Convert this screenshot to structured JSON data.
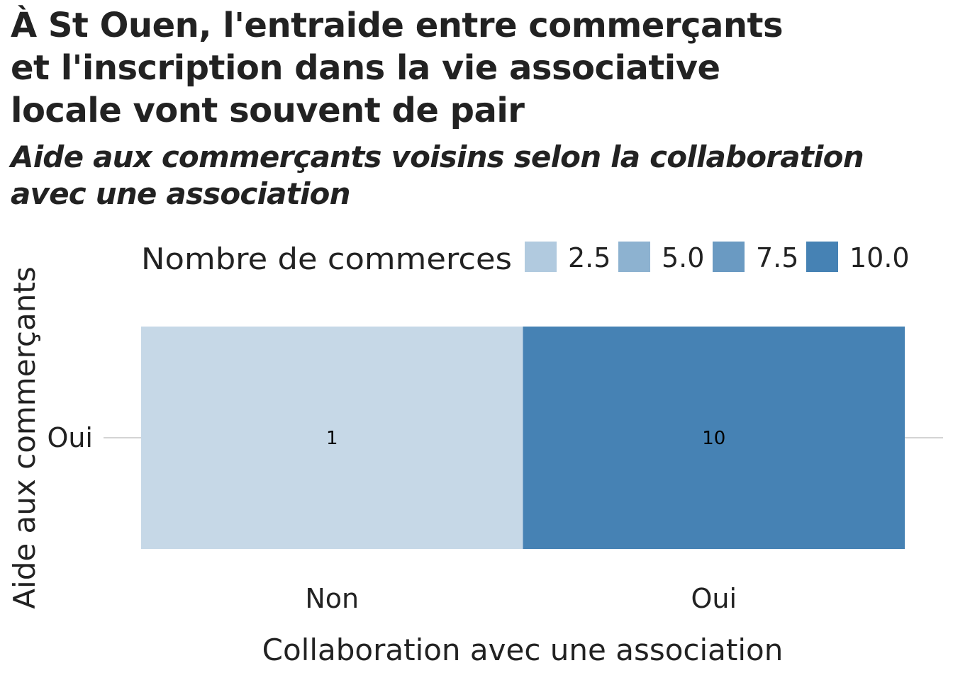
{
  "title": [
    "À St Ouen, l'entraide entre commerçants",
    "et l'inscription dans la vie associative",
    "locale vont souvent de pair"
  ],
  "subtitle": [
    "Aide aux commerçants voisins selon la collaboration",
    "avec une association"
  ],
  "chart_data": {
    "type": "heatmap",
    "xlabel": "Collaboration avec une association",
    "ylabel": "Aide aux commerçants",
    "x_categories": [
      "Non",
      "Oui"
    ],
    "y_categories": [
      "Oui"
    ],
    "cells": [
      {
        "x": "Non",
        "y": "Oui",
        "value": 1,
        "label": "1"
      },
      {
        "x": "Oui",
        "y": "Oui",
        "value": 10,
        "label": "10"
      }
    ],
    "legend": {
      "title": "Nombre de commerces",
      "position": "top",
      "breaks": [
        "2.5",
        "5.0",
        "7.5",
        "10.0"
      ],
      "break_values": [
        2.5,
        5.0,
        7.5,
        10.0
      ]
    },
    "color_scale": {
      "low": "#c6d8e7",
      "high": "#4682b4",
      "domain": [
        1,
        10
      ]
    },
    "grid": true
  }
}
